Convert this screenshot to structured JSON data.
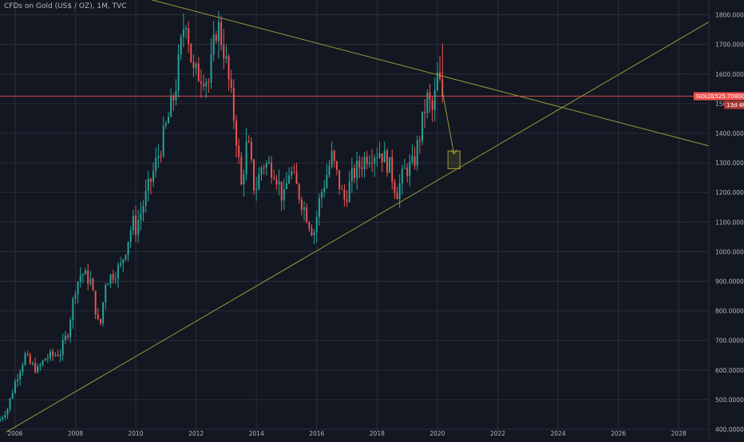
{
  "chart_data": {
    "type": "candlestick",
    "title": "CFDs on Gold (US$ / OZ), 1M, TVC",
    "symbol": "GOLD",
    "last_price_label": "1525.708000",
    "countdown_label": "13d 4h",
    "ylim": [
      400,
      1850
    ],
    "xlim": [
      2005.5,
      2029
    ],
    "y_ticks": [
      {
        "value": 400,
        "label": "400.000000"
      },
      {
        "value": 500,
        "label": "500.000000"
      },
      {
        "value": 600,
        "label": "600.000000"
      },
      {
        "value": 700,
        "label": "700.000000"
      },
      {
        "value": 800,
        "label": "800.000000"
      },
      {
        "value": 900,
        "label": "900.000000"
      },
      {
        "value": 1000,
        "label": "1000.000000"
      },
      {
        "value": 1100,
        "label": "1100.000000"
      },
      {
        "value": 1200,
        "label": "1200.000000"
      },
      {
        "value": 1300,
        "label": "1300.000000"
      },
      {
        "value": 1400,
        "label": "1400.000000"
      },
      {
        "value": 1500,
        "label": "1500.000000"
      },
      {
        "value": 1600,
        "label": "1600.000000"
      },
      {
        "value": 1700,
        "label": "1700.000000"
      },
      {
        "value": 1800,
        "label": "1800.000000"
      }
    ],
    "x_ticks": [
      {
        "value": 2006,
        "label": "2006"
      },
      {
        "value": 2008,
        "label": "2008"
      },
      {
        "value": 2010,
        "label": "2010"
      },
      {
        "value": 2012,
        "label": "2012"
      },
      {
        "value": 2014,
        "label": "2014"
      },
      {
        "value": 2016,
        "label": "2016"
      },
      {
        "value": 2018,
        "label": "2018"
      },
      {
        "value": 2020,
        "label": "2020"
      },
      {
        "value": 2022,
        "label": "2022"
      },
      {
        "value": 2024,
        "label": "2024"
      },
      {
        "value": 2026,
        "label": "2026"
      },
      {
        "value": 2028,
        "label": "2028"
      }
    ],
    "closes": [
      {
        "x": 2005.5,
        "y": 435
      },
      {
        "x": 2005.75,
        "y": 470
      },
      {
        "x": 2006.0,
        "y": 560
      },
      {
        "x": 2006.33,
        "y": 650
      },
      {
        "x": 2006.5,
        "y": 620
      },
      {
        "x": 2006.75,
        "y": 600
      },
      {
        "x": 2007.0,
        "y": 640
      },
      {
        "x": 2007.5,
        "y": 660
      },
      {
        "x": 2007.75,
        "y": 730
      },
      {
        "x": 2008.0,
        "y": 880
      },
      {
        "x": 2008.2,
        "y": 930
      },
      {
        "x": 2008.5,
        "y": 900
      },
      {
        "x": 2008.8,
        "y": 730
      },
      {
        "x": 2009.0,
        "y": 900
      },
      {
        "x": 2009.5,
        "y": 950
      },
      {
        "x": 2009.9,
        "y": 1100
      },
      {
        "x": 2010.0,
        "y": 1080
      },
      {
        "x": 2010.5,
        "y": 1240
      },
      {
        "x": 2010.9,
        "y": 1380
      },
      {
        "x": 2011.3,
        "y": 1540
      },
      {
        "x": 2011.65,
        "y": 1810
      },
      {
        "x": 2011.9,
        "y": 1600
      },
      {
        "x": 2012.3,
        "y": 1600
      },
      {
        "x": 2012.4,
        "y": 1560
      },
      {
        "x": 2012.7,
        "y": 1775
      },
      {
        "x": 2012.95,
        "y": 1670
      },
      {
        "x": 2013.3,
        "y": 1420
      },
      {
        "x": 2013.5,
        "y": 1220
      },
      {
        "x": 2013.7,
        "y": 1380
      },
      {
        "x": 2013.95,
        "y": 1200
      },
      {
        "x": 2014.2,
        "y": 1300
      },
      {
        "x": 2014.6,
        "y": 1280
      },
      {
        "x": 2014.9,
        "y": 1170
      },
      {
        "x": 2015.1,
        "y": 1280
      },
      {
        "x": 2015.5,
        "y": 1170
      },
      {
        "x": 2015.9,
        "y": 1060
      },
      {
        "x": 2016.1,
        "y": 1180
      },
      {
        "x": 2016.5,
        "y": 1320
      },
      {
        "x": 2016.9,
        "y": 1170
      },
      {
        "x": 2017.2,
        "y": 1260
      },
      {
        "x": 2017.7,
        "y": 1330
      },
      {
        "x": 2018.1,
        "y": 1340
      },
      {
        "x": 2018.4,
        "y": 1290
      },
      {
        "x": 2018.65,
        "y": 1200
      },
      {
        "x": 2018.95,
        "y": 1280
      },
      {
        "x": 2019.2,
        "y": 1290
      },
      {
        "x": 2019.45,
        "y": 1410
      },
      {
        "x": 2019.65,
        "y": 1520
      },
      {
        "x": 2019.85,
        "y": 1470
      },
      {
        "x": 2020.0,
        "y": 1590
      },
      {
        "x": 2020.17,
        "y": 1525
      }
    ],
    "trendlines": [
      {
        "name": "descending-resistance",
        "from": {
          "x": 2009.95,
          "y": 1866
        },
        "to": {
          "x": 2029,
          "y": 1357
        }
      },
      {
        "name": "ascending-support",
        "from": {
          "x": 2005.7,
          "y": 390
        },
        "to": {
          "x": 2029,
          "y": 1776
        }
      },
      {
        "name": "projection-arrow",
        "from": {
          "x": 2020.15,
          "y": 1550
        },
        "to": {
          "x": 2020.55,
          "y": 1330
        }
      }
    ],
    "target_box": {
      "x1": 2020.35,
      "x2": 2020.75,
      "y1": 1280,
      "y2": 1340
    },
    "colors": {
      "background": "#131722",
      "grid": "#2a2e39",
      "up": "#26a69a",
      "down": "#ef5350",
      "trendline": "#9a9a3a",
      "price_line": "#ef5350",
      "axis_text": "#b2b5be"
    }
  }
}
